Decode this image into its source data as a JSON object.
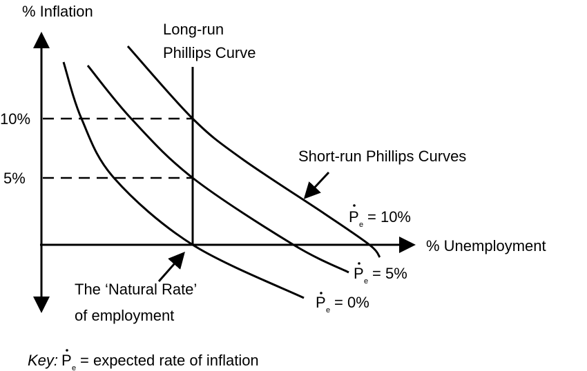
{
  "axes": {
    "y_label": "% Inflation",
    "x_label": "% Unemployment",
    "y_ticks": [
      "10%",
      "5%"
    ]
  },
  "long_run": {
    "line1": "Long-run",
    "line2": "Phillips Curve"
  },
  "short_run_label": "Short-run Phillips Curves",
  "curves": [
    {
      "symbol": "P",
      "sub": "e",
      "eq": "= 10%"
    },
    {
      "symbol": "P",
      "sub": "e",
      "eq": "= 5%"
    },
    {
      "symbol": "P",
      "sub": "e",
      "eq": "= 0%"
    }
  ],
  "natural_rate": {
    "line1": "The ‘Natural Rate’",
    "line2": "of employment"
  },
  "key": {
    "prefix": "Key:",
    "symbol": "P",
    "sub": "e",
    "text": "= expected rate of inflation"
  },
  "colors": {
    "ink": "#000000",
    "background": "#ffffff"
  }
}
